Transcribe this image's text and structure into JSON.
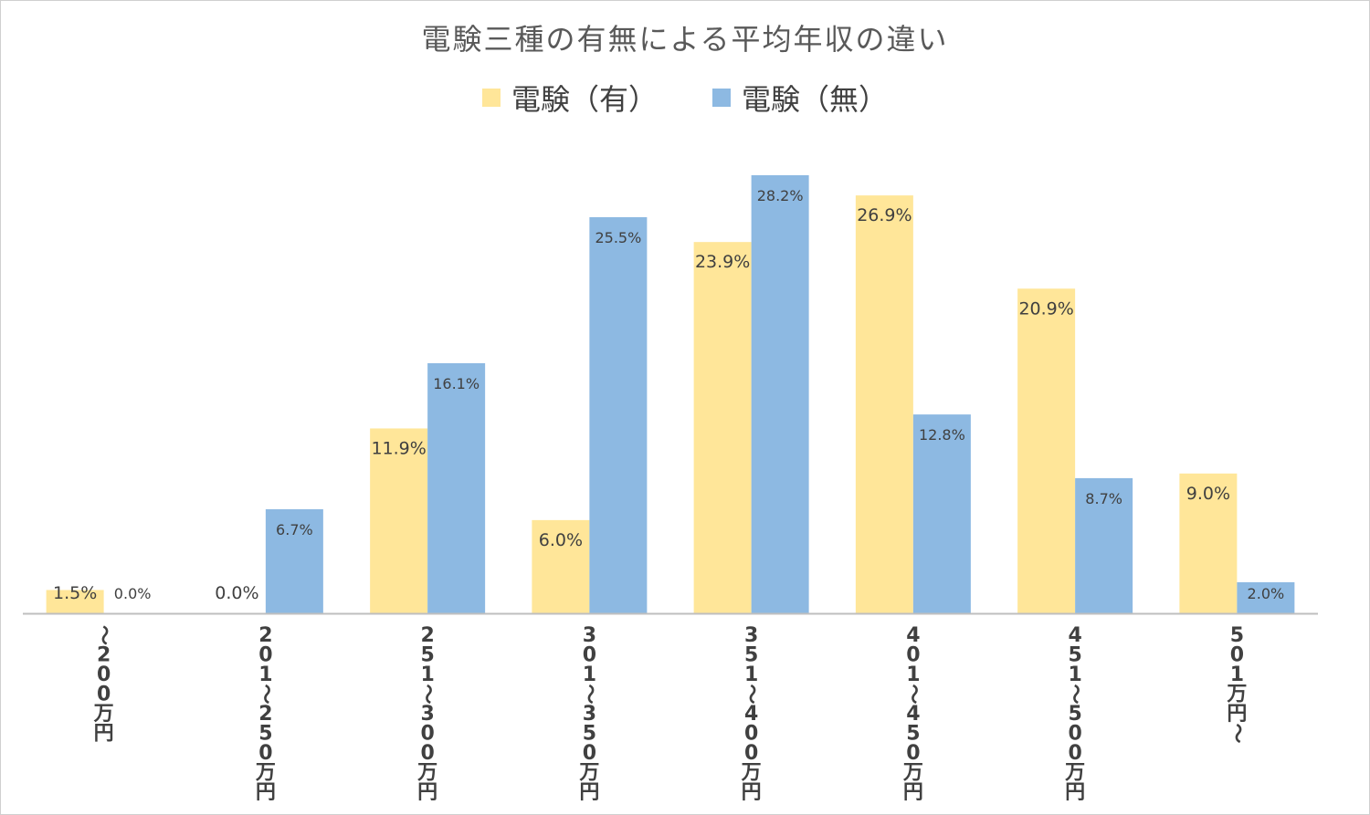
{
  "chart_data": {
    "type": "bar",
    "title": "電験三種の有無による平均年収の違い",
    "categories": [
      "～200万円",
      "201～250万円",
      "251～300万円",
      "301～350万円",
      "351～400万円",
      "401～450万円",
      "451～500万円",
      "501万円～"
    ],
    "series": [
      {
        "name": "電験（有）",
        "color": "#FFE699",
        "values": [
          1.5,
          0.0,
          11.9,
          6.0,
          23.9,
          26.9,
          20.9,
          9.0
        ],
        "labels": [
          "1.5%",
          "0.0%",
          "11.9%",
          "6.0%",
          "23.9%",
          "26.9%",
          "20.9%",
          "9.0%"
        ]
      },
      {
        "name": "電験（無）",
        "color": "#8DB9E2",
        "values": [
          0.0,
          6.7,
          16.1,
          25.5,
          28.2,
          12.8,
          8.7,
          2.0
        ],
        "labels": [
          "0.0%",
          "6.7%",
          "16.1%",
          "25.5%",
          "28.2%",
          "12.8%",
          "8.7%",
          "2.0%"
        ]
      }
    ],
    "ylim": [
      0,
      30
    ],
    "legend_position": "top",
    "grid": false,
    "axis_color": "#BFBFBF"
  }
}
